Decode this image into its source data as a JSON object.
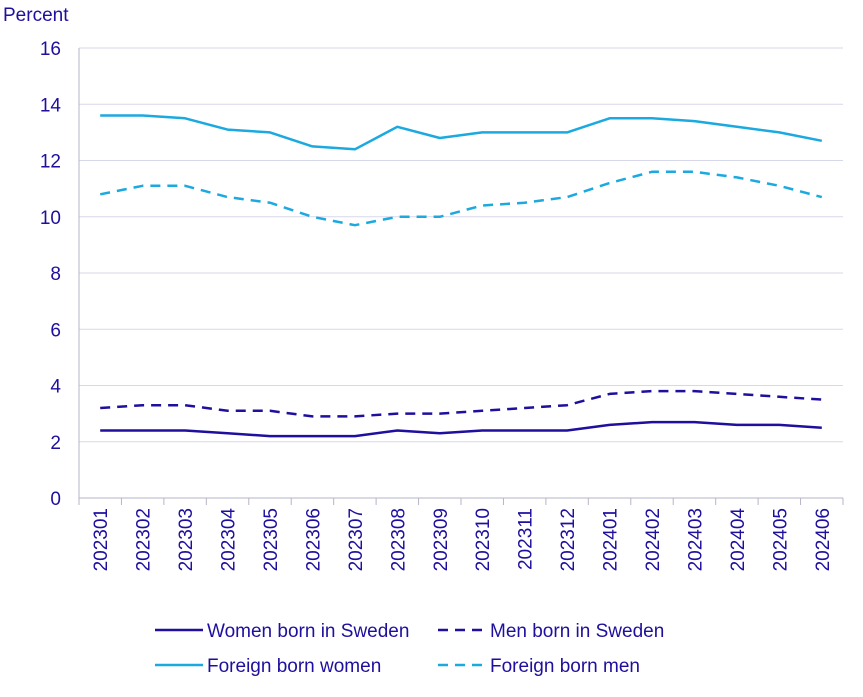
{
  "chart_data": {
    "type": "line",
    "ylabel": "Percent",
    "ylim": [
      0,
      16
    ],
    "yticks": [
      "0",
      "2",
      "4",
      "6",
      "8",
      "10",
      "12",
      "14",
      "16"
    ],
    "grid": true,
    "categories": [
      "202301",
      "202302",
      "202303",
      "202304",
      "202305",
      "202306",
      "202307",
      "202308",
      "202309",
      "202310",
      "202311",
      "202312",
      "202401",
      "202402",
      "202403",
      "202404",
      "202405",
      "202406"
    ],
    "series": [
      {
        "name": "Women born in Sweden",
        "style": "solid",
        "color": "#1e0f9e",
        "values": [
          2.4,
          2.4,
          2.4,
          2.3,
          2.2,
          2.2,
          2.2,
          2.4,
          2.3,
          2.4,
          2.4,
          2.4,
          2.6,
          2.7,
          2.7,
          2.6,
          2.6,
          2.5
        ]
      },
      {
        "name": "Men born in Sweden",
        "style": "dashed",
        "color": "#1e0f9e",
        "values": [
          3.2,
          3.3,
          3.3,
          3.1,
          3.1,
          2.9,
          2.9,
          3.0,
          3.0,
          3.1,
          3.2,
          3.3,
          3.7,
          3.8,
          3.8,
          3.7,
          3.6,
          3.5
        ]
      },
      {
        "name": "Foreign born women",
        "style": "solid",
        "color": "#1ba9e0",
        "values": [
          13.6,
          13.6,
          13.5,
          13.1,
          13.0,
          12.5,
          12.4,
          13.2,
          12.8,
          13.0,
          13.0,
          13.0,
          13.5,
          13.5,
          13.4,
          13.2,
          13.0,
          12.7
        ]
      },
      {
        "name": "Foreign born men",
        "style": "dashed",
        "color": "#1ba9e0",
        "values": [
          10.8,
          11.1,
          11.1,
          10.7,
          10.5,
          10.0,
          9.7,
          10.0,
          10.0,
          10.4,
          10.5,
          10.7,
          11.2,
          11.6,
          11.6,
          11.4,
          11.1,
          10.7
        ]
      }
    ],
    "colors": {
      "axis_text": "#1e0f9e",
      "grid": "#d7d7ea",
      "axis_line": "#b5b5c8"
    }
  }
}
